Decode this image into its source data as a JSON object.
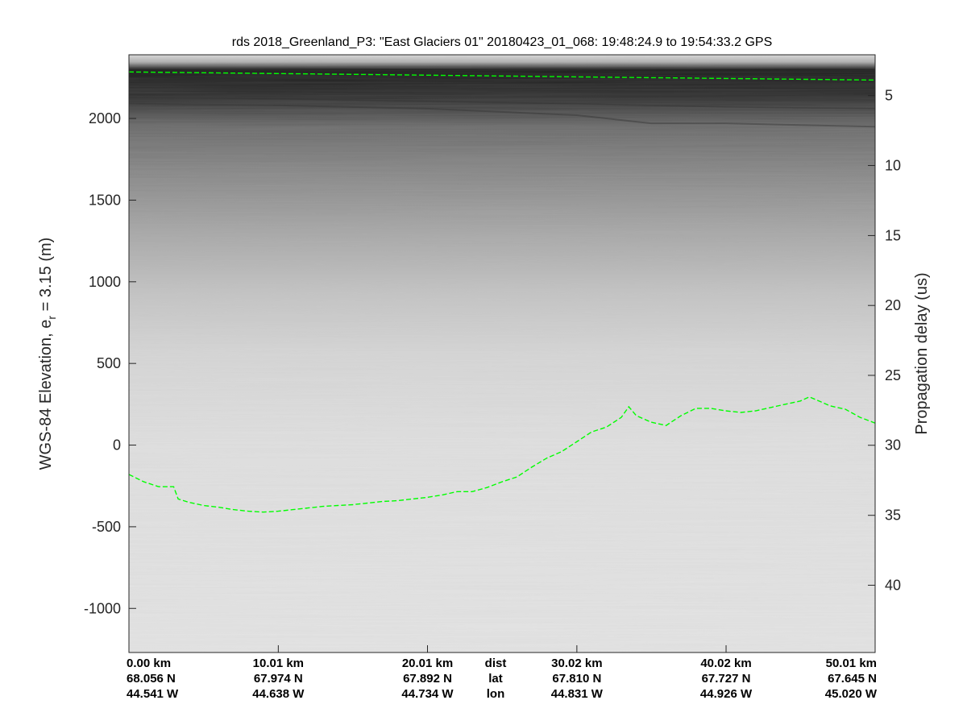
{
  "chart_data": {
    "type": "line",
    "title": "rds 2018_Greenland_P3: \"East Glaciers 01\"  20180423_01_068: 19:48:24.9 to 19:54:33.2 GPS",
    "ylabel": "WGS-84 Elevation, e",
    "ylabel_subscript": "r",
    "ylabel_suffix": " = 3.15 (m)",
    "ylabel_right": "Propagation delay (us)",
    "xlim": [
      0,
      50.01
    ],
    "ylim": [
      -1270,
      2390
    ],
    "yticks": [
      -1000,
      -500,
      0,
      500,
      1000,
      1500,
      2000
    ],
    "yticks_right": [
      5,
      10,
      15,
      20,
      25,
      30,
      35,
      40
    ],
    "yticks_right_elevation": [
      2140,
      1712,
      1283,
      855,
      427,
      -1,
      -430,
      -858
    ],
    "grid": false,
    "colors": {
      "layer_line": "#00ff00",
      "background_light": "#e4e4e4",
      "background_dark": "#1a1a1a"
    },
    "bottom_rows": [
      {
        "values": [
          "0.00 km",
          "10.01 km",
          "20.01 km",
          "30.02 km",
          "40.02 km",
          "50.01 km"
        ],
        "label": "dist"
      },
      {
        "values": [
          "68.056 N",
          "67.974 N",
          "67.892 N",
          "67.810 N",
          "67.727 N",
          "67.645 N"
        ],
        "label": "lat"
      },
      {
        "values": [
          "44.541 W",
          "44.638 W",
          "44.734 W",
          "44.831 W",
          "44.926 W",
          "45.020 W"
        ],
        "label": "lon"
      }
    ],
    "bottom_positions_km": [
      0,
      10.01,
      20.01,
      30.02,
      40.02,
      50.01
    ],
    "internal_layers": [
      {
        "x": [
          0,
          10,
          20,
          30,
          35,
          40,
          45,
          50.01
        ],
        "y": [
          2090,
          2080,
          2060,
          2020,
          1970,
          1970,
          1960,
          1950
        ]
      },
      {
        "x": [
          0,
          10,
          20,
          30,
          40,
          50.01
        ],
        "y": [
          2130,
          2120,
          2105,
          2090,
          2070,
          2060
        ]
      }
    ],
    "series": [
      {
        "x": [
          0,
          10,
          20,
          30,
          40,
          50.01
        ],
        "y": [
          2285,
          2275,
          2265,
          2255,
          2245,
          2235
        ]
      },
      {
        "x": [
          0,
          1,
          2,
          3,
          3.3,
          4,
          5,
          6,
          7,
          8,
          9,
          10,
          11,
          12,
          13,
          14,
          15,
          16,
          17,
          18,
          19,
          20,
          21,
          22,
          23,
          24,
          25,
          26,
          27,
          28,
          29,
          30,
          31,
          32,
          33,
          33.5,
          34,
          35,
          36,
          37,
          38,
          39,
          40,
          41,
          42,
          43,
          44,
          45,
          45.6,
          46,
          47,
          48,
          49,
          50.01
        ],
        "y": [
          -180,
          -225,
          -255,
          -255,
          -330,
          -350,
          -370,
          -380,
          -395,
          -405,
          -410,
          -405,
          -395,
          -385,
          -375,
          -370,
          -365,
          -355,
          -345,
          -340,
          -330,
          -320,
          -305,
          -285,
          -285,
          -260,
          -225,
          -195,
          -135,
          -80,
          -40,
          20,
          80,
          110,
          170,
          235,
          180,
          140,
          120,
          180,
          225,
          225,
          210,
          200,
          210,
          230,
          250,
          270,
          295,
          280,
          240,
          220,
          170,
          135
        ]
      }
    ]
  }
}
